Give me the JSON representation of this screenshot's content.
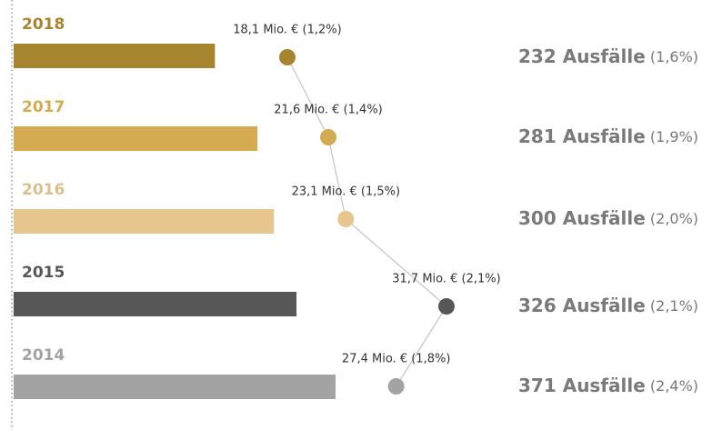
{
  "chart_data": {
    "type": "bar",
    "categories": [
      "2018",
      "2017",
      "2016",
      "2015",
      "2014"
    ],
    "colors": [
      "#a6852e",
      "#d4ab50",
      "#e6c68d",
      "#575757",
      "#a3a3a3"
    ],
    "label_colors": [
      "#a6852e",
      "#d4ab50",
      "#dcc08a",
      "#575757",
      "#a3a3a3"
    ],
    "series": [
      {
        "name": "Ausfälle",
        "values": [
          232,
          281,
          300,
          326,
          371
        ],
        "value_labels": [
          "232 Ausfälle",
          "281 Ausfälle",
          "300 Ausfälle",
          "326 Ausfälle",
          "371 Ausfälle"
        ],
        "share_labels": [
          "(1,6%)",
          "(1,9%)",
          "(2,0%)",
          "(2,1%)",
          "(2,4%)"
        ]
      },
      {
        "name": "Mio. €",
        "values": [
          18.1,
          21.6,
          23.1,
          31.7,
          27.4
        ],
        "value_labels": [
          "18,1 Mio. € (1,2%)",
          "21,6 Mio. € (1,4%)",
          "23,1 Mio. € (1,5%)",
          "31,7 Mio. € (2,1%)",
          "27,4 Mio. € (1,8%)"
        ]
      }
    ]
  }
}
